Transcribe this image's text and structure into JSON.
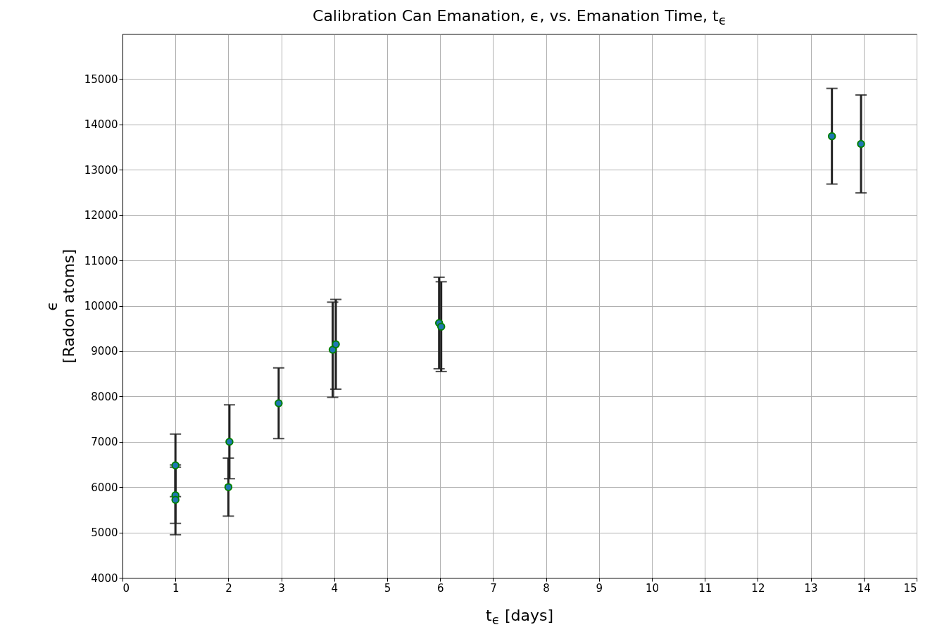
{
  "chart_data": {
    "type": "scatter",
    "title": "Calibration Can Emanation, ϵ, vs. Emanation Time, t$_{ϵ}$",
    "xlabel": "t$_{ϵ}$ [days]",
    "ylabel": "ϵ\n[Radon atoms]",
    "x": [
      1.0,
      1.0,
      1.0,
      2.02,
      2.0,
      2.95,
      3.97,
      4.03,
      5.98,
      6.02,
      13.4,
      13.95
    ],
    "series": [
      {
        "color": "#1f77b4",
        "values": [
          6480,
          5820,
          5720,
          7000,
          6000,
          7850,
          9030,
          9150,
          9620,
          9540,
          13740,
          13570
        ],
        "errors": [
          690,
          620,
          770,
          815,
          640,
          780,
          1050,
          990,
          1010,
          990,
          1055,
          1080
        ]
      }
    ],
    "xlim": [
      0,
      15
    ],
    "xticks": [
      0,
      1,
      2,
      3,
      4,
      5,
      6,
      7,
      8,
      9,
      10,
      11,
      12,
      13,
      14,
      15
    ],
    "ylim": [
      4000,
      16000
    ],
    "yticks": [
      4000,
      5000,
      6000,
      7000,
      8000,
      9000,
      10000,
      11000,
      12000,
      13000,
      14000,
      15000
    ],
    "grid": true,
    "marker": "circle"
  }
}
